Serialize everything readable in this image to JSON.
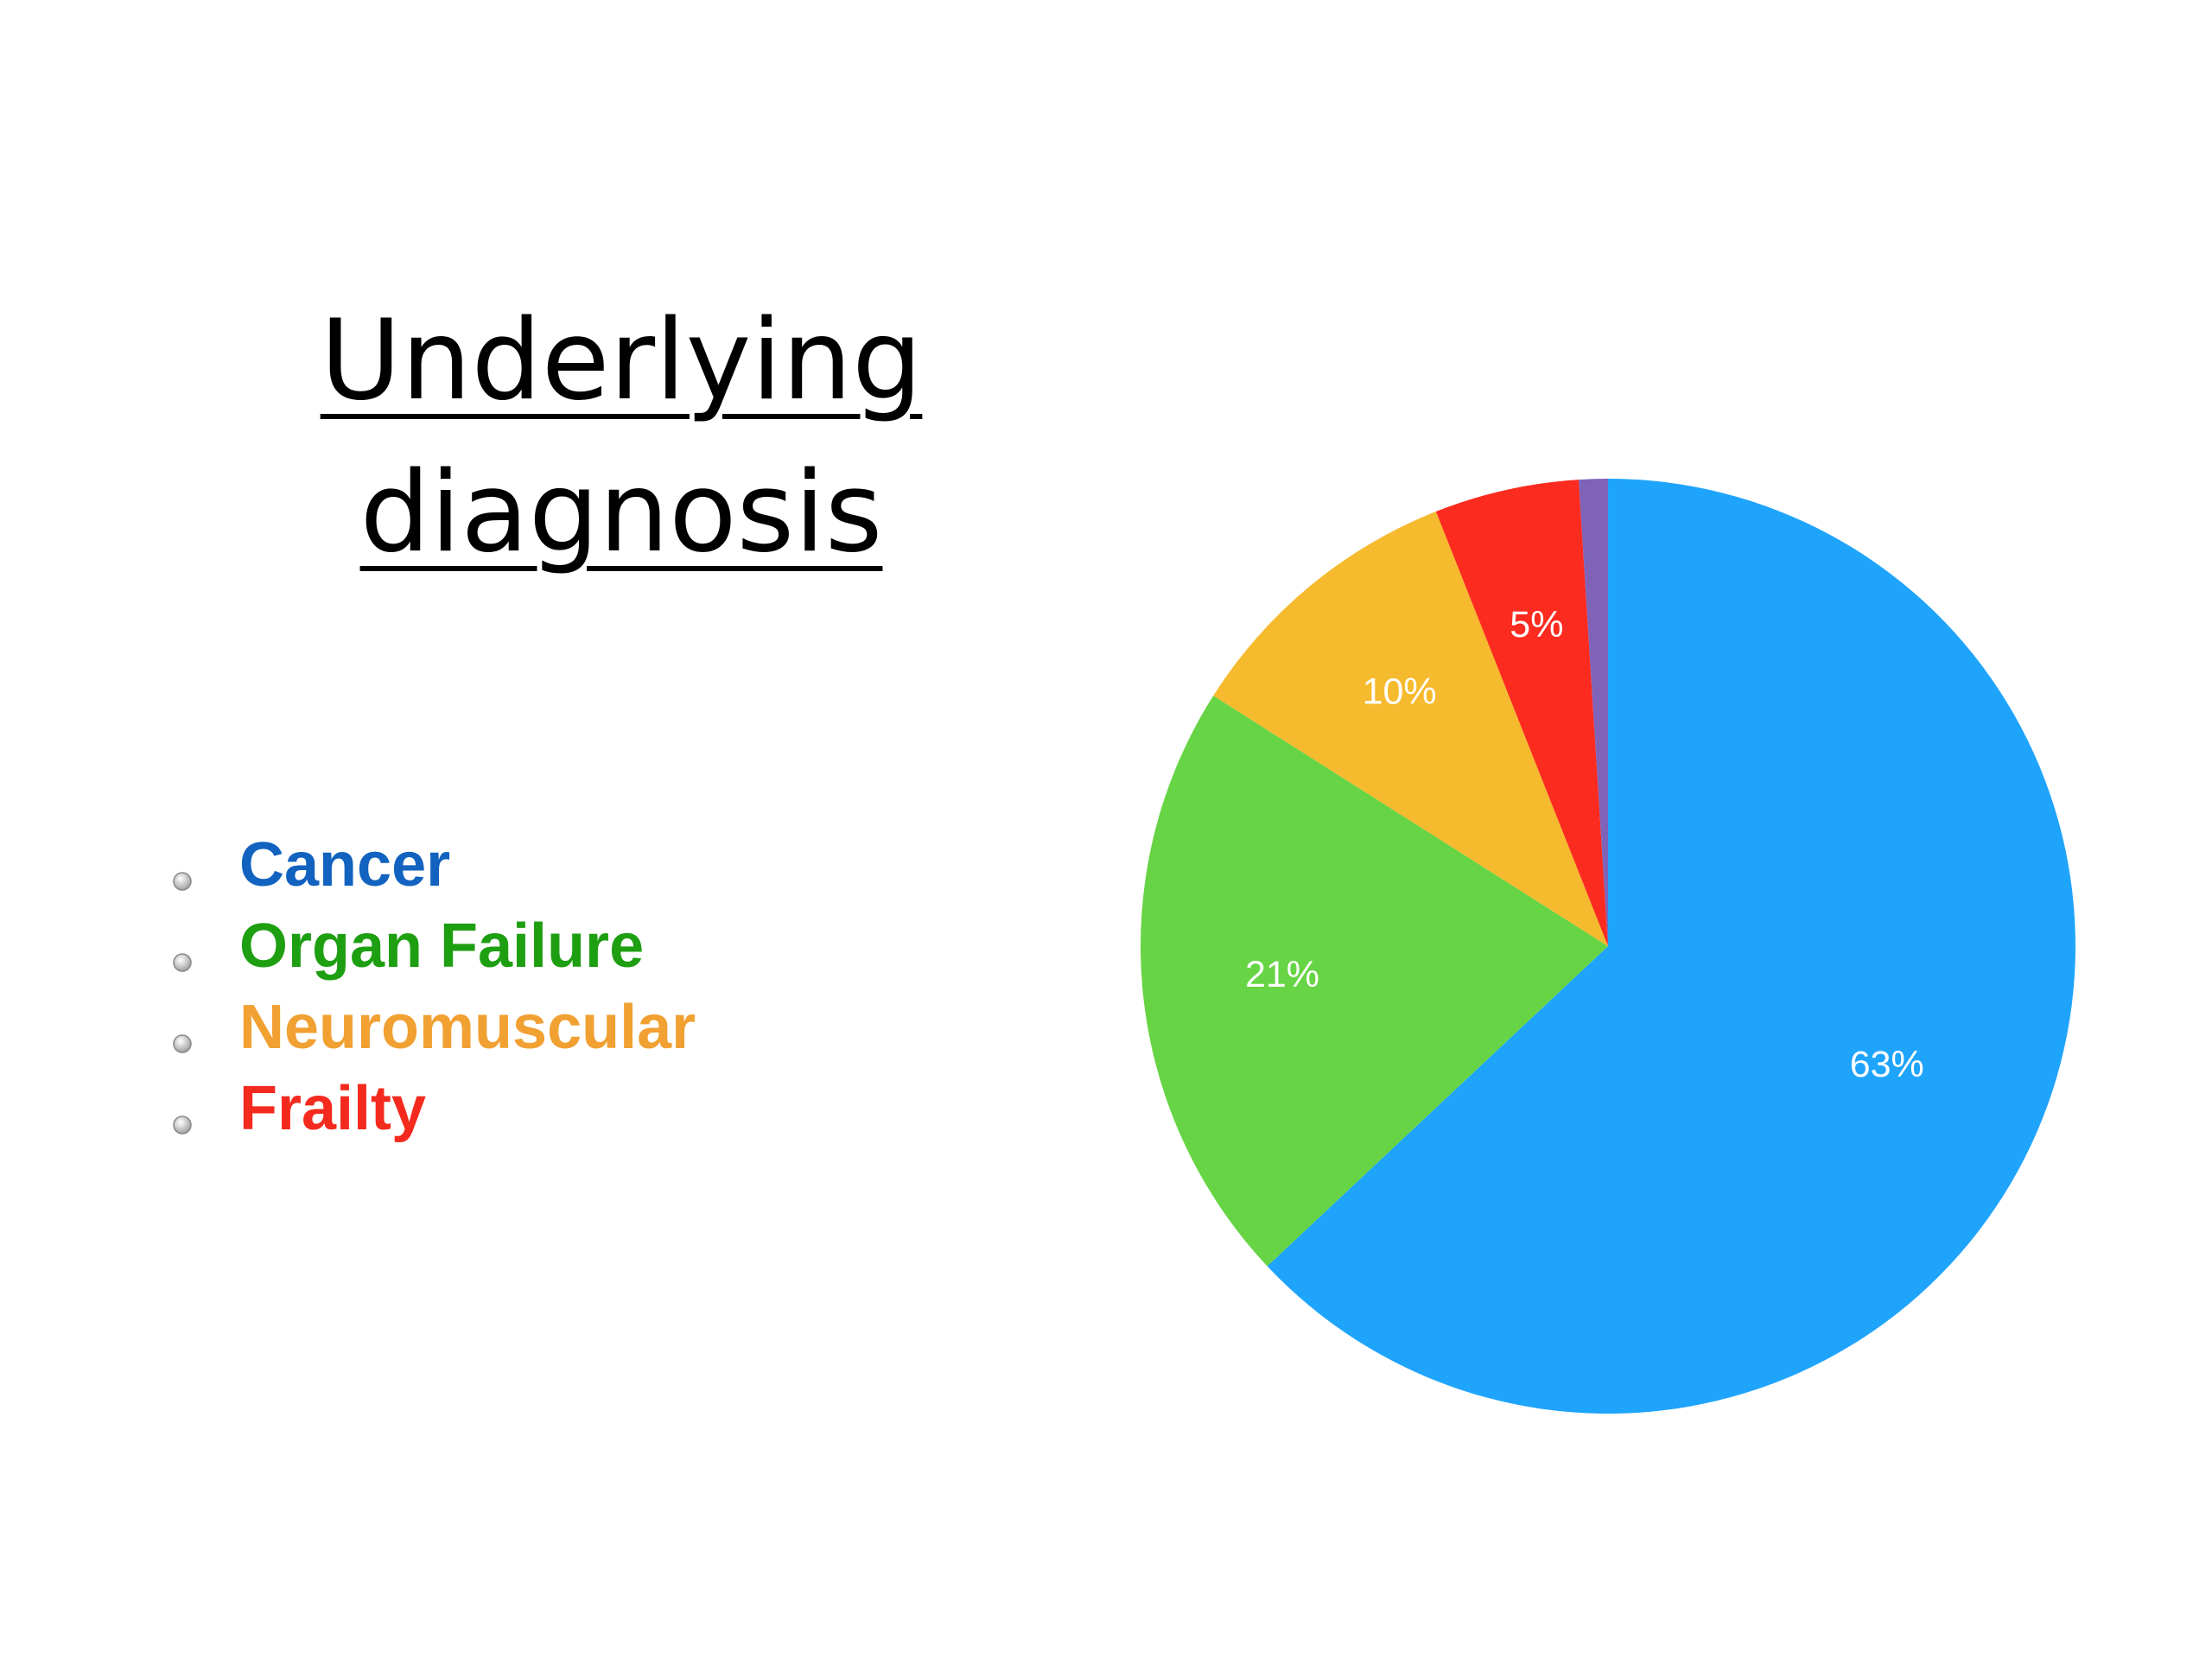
{
  "chart_data": {
    "type": "pie",
    "title": "Underlying diagnosis",
    "categories": [
      "Cancer",
      "Organ Failure",
      "Neuromuscular",
      "Frailty",
      null
    ],
    "values": [
      63,
      21,
      10,
      5,
      1
    ],
    "value_labels": [
      "63%",
      "21%",
      "10%",
      "5%",
      null
    ],
    "colors": [
      "#1fa4fc",
      "#67d445",
      "#f6ba2e",
      "#fc2b20",
      "#7e63b8"
    ],
    "legend_colors": [
      "#1262bf",
      "#1e9f12",
      "#f1a032",
      "#f52a1e",
      null
    ]
  }
}
